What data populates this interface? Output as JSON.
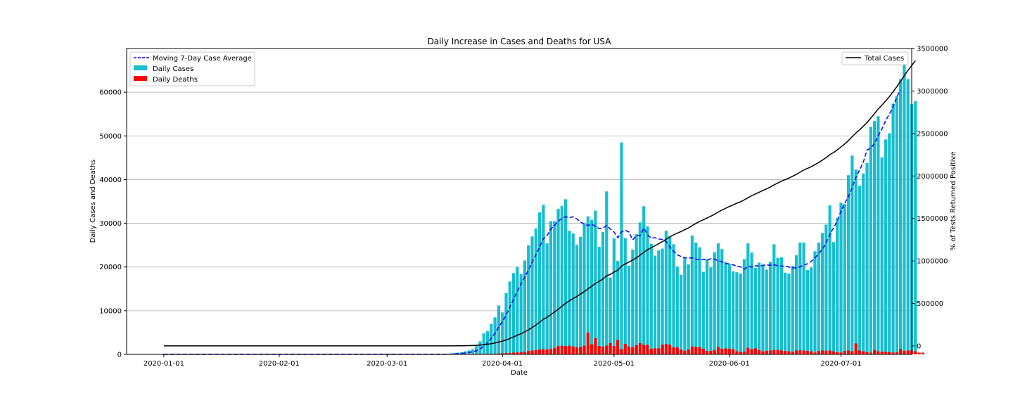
{
  "chart_data": {
    "type": "bar",
    "title": "Daily Increase in Cases and Deaths for USA",
    "xlabel": "Date",
    "ylabel": "Daily Cases and Deaths",
    "y2label": "% of Tests Returned Positive",
    "x_start": "2020-01-01",
    "x_end": "2020-07-10",
    "x_range": [
      "2019-12-22",
      "2020-07-20"
    ],
    "ylim": [
      0,
      70000
    ],
    "y2lim": [
      -100000,
      3500000
    ],
    "grid": true,
    "legend_left_position": "upper-left",
    "legend_right_position": "upper-right",
    "xticks": [
      "2020-01-01",
      "2020-02-01",
      "2020-03-01",
      "2020-04-01",
      "2020-05-01",
      "2020-06-01",
      "2020-07-01"
    ],
    "yticks": [
      "0",
      "10000",
      "20000",
      "30000",
      "40000",
      "50000",
      "60000"
    ],
    "y2ticks": [
      "0",
      "500000",
      "1000000",
      "1500000",
      "2000000",
      "2500000",
      "3000000",
      "3500000"
    ],
    "colors": {
      "daily_cases": "#17becf",
      "daily_deaths": "#ff0000",
      "moving_avg": "#0000ff",
      "total_cases": "#000000"
    },
    "legend_left": [
      "Moving 7-Day Case Average",
      "Daily Cases",
      "Daily Deaths"
    ],
    "legend_right": [
      "Total Cases"
    ],
    "daily_cases": [
      0,
      0,
      0,
      0,
      0,
      0,
      0,
      0,
      0,
      0,
      0,
      0,
      0,
      0,
      0,
      0,
      0,
      0,
      0,
      0,
      0,
      0,
      0,
      0,
      0,
      0,
      0,
      0,
      0,
      0,
      0,
      0,
      0,
      0,
      0,
      0,
      0,
      0,
      0,
      0,
      0,
      0,
      0,
      0,
      0,
      0,
      0,
      0,
      0,
      0,
      0,
      0,
      0,
      0,
      0,
      0,
      0,
      0,
      0,
      0,
      0,
      0,
      0,
      0,
      0,
      0,
      0,
      0,
      0,
      0,
      0,
      0,
      0,
      0,
      0,
      0,
      0,
      200,
      300,
      400,
      500,
      700,
      900,
      1200,
      2000,
      3000,
      4800,
      5300,
      7000,
      8500,
      11200,
      9600,
      14000,
      16700,
      18600,
      20000,
      18400,
      21500,
      25000,
      27000,
      28800,
      32500,
      34200,
      25400,
      30500,
      30500,
      33300,
      34000,
      35500,
      28300,
      27700,
      25100,
      26900,
      30000,
      31600,
      30800,
      32900,
      24600,
      28000,
      37300,
      17600,
      26600,
      21400,
      48500,
      26600,
      20300,
      24000,
      27500,
      30200,
      33900,
      29300,
      25300,
      22600,
      23800,
      24200,
      28300,
      27000,
      25200,
      20100,
      18200,
      22100,
      20600,
      27200,
      25600,
      24500,
      18900,
      21800,
      19900,
      23400,
      25400,
      24100,
      21100,
      20600,
      19000,
      18800,
      18500,
      21800,
      25400,
      23300,
      19800,
      21000,
      20500,
      19400,
      21200,
      25200,
      22100,
      22200,
      18700,
      18500,
      20300,
      22700,
      25600,
      25600,
      19300,
      19900,
      23600,
      25600,
      27800,
      29700,
      34100,
      25700,
      31200,
      34700,
      34400,
      41000,
      45500,
      42300,
      38600,
      41400,
      43800,
      52100,
      53400,
      54500,
      45100,
      49200,
      50600,
      57400,
      59100,
      63000,
      66600,
      63000,
      57300,
      58000
    ],
    "daily_deaths": [
      0,
      0,
      0,
      0,
      0,
      0,
      0,
      0,
      0,
      0,
      0,
      0,
      0,
      0,
      0,
      0,
      0,
      0,
      0,
      0,
      0,
      0,
      0,
      0,
      0,
      0,
      0,
      0,
      0,
      0,
      0,
      0,
      0,
      0,
      0,
      0,
      0,
      0,
      0,
      0,
      0,
      0,
      0,
      0,
      0,
      0,
      0,
      0,
      0,
      0,
      0,
      0,
      0,
      0,
      0,
      0,
      0,
      0,
      0,
      0,
      0,
      0,
      0,
      0,
      0,
      0,
      0,
      0,
      0,
      0,
      0,
      0,
      0,
      0,
      0,
      0,
      0,
      0,
      0,
      0,
      10,
      20,
      25,
      30,
      40,
      50,
      60,
      80,
      110,
      150,
      200,
      250,
      300,
      350,
      400,
      450,
      500,
      600,
      800,
      900,
      1000,
      1100,
      1200,
      1100,
      1300,
      1400,
      1900,
      2000,
      1900,
      2000,
      1800,
      1600,
      1700,
      2000,
      5000,
      2300,
      3700,
      1900,
      1800,
      2000,
      2600,
      1900,
      3300,
      1200,
      2400,
      1800,
      1600,
      2100,
      2600,
      2200,
      2200,
      1300,
      1400,
      1400,
      2200,
      2400,
      2200,
      1600,
      1600,
      1100,
      800,
      1100,
      1800,
      1700,
      1700,
      1300,
      800,
      800,
      1000,
      1700,
      1300,
      1400,
      1300,
      1200,
      700,
      600,
      600,
      1500,
      1200,
      1400,
      1000,
      700,
      800,
      900,
      1000,
      1000,
      900,
      800,
      700,
      600,
      900,
      900,
      900,
      800,
      700,
      400,
      800,
      900,
      800,
      900,
      700,
      500,
      400,
      800,
      900,
      700,
      2500,
      900,
      700,
      500,
      400,
      1000,
      700,
      600,
      600,
      500,
      400,
      500,
      1200,
      800,
      900,
      900,
      700,
      400,
      400
    ],
    "moving_avg": [
      0,
      0,
      0,
      0,
      0,
      0,
      0,
      0,
      0,
      0,
      0,
      0,
      0,
      0,
      0,
      0,
      0,
      0,
      0,
      0,
      0,
      0,
      0,
      0,
      0,
      0,
      0,
      0,
      0,
      0,
      0,
      0,
      0,
      0,
      0,
      0,
      0,
      0,
      0,
      0,
      0,
      0,
      0,
      0,
      0,
      0,
      0,
      0,
      0,
      0,
      0,
      0,
      0,
      0,
      0,
      0,
      0,
      0,
      0,
      0,
      0,
      0,
      0,
      0,
      0,
      0,
      0,
      0,
      0,
      0,
      0,
      0,
      0,
      0,
      0,
      0,
      20,
      40,
      100,
      160,
      230,
      330,
      450,
      600,
      820,
      1220,
      1900,
      2700,
      3700,
      4800,
      6300,
      7500,
      9000,
      10800,
      12600,
      14500,
      16100,
      17700,
      19300,
      21100,
      22800,
      24600,
      26500,
      27200,
      28700,
      29500,
      30500,
      31100,
      31500,
      31300,
      31500,
      31000,
      30300,
      29800,
      29500,
      29800,
      29300,
      28800,
      28900,
      29500,
      28700,
      28000,
      26700,
      28000,
      28400,
      28000,
      26200,
      27200,
      27200,
      28900,
      27400,
      26600,
      26700,
      26400,
      26300,
      25800,
      24600,
      23600,
      22800,
      22400,
      22100,
      22000,
      22100,
      21800,
      21600,
      21800,
      21500,
      21900,
      21800,
      21400,
      21200,
      20800,
      20700,
      20500,
      20200,
      20000,
      19500,
      20100,
      20000,
      20300,
      20200,
      20400,
      20500,
      20400,
      20500,
      20300,
      20200,
      20200,
      20000,
      19800,
      19800,
      20000,
      20500,
      20700,
      21300,
      22100,
      23000,
      24100,
      25500,
      27400,
      29000,
      30500,
      32800,
      34600,
      36100,
      38200,
      40500,
      42200,
      44000,
      46800,
      47200,
      48300,
      50000,
      51600,
      53500,
      55000,
      56600,
      58900,
      60500
    ],
    "total_cases": [
      0,
      0,
      0,
      0,
      0,
      0,
      0,
      0,
      0,
      0,
      0,
      0,
      0,
      0,
      0,
      0,
      0,
      0,
      0,
      0,
      0,
      0,
      0,
      0,
      0,
      0,
      0,
      0,
      0,
      0,
      0,
      0,
      0,
      0,
      0,
      0,
      0,
      0,
      0,
      0,
      0,
      0,
      0,
      0,
      0,
      0,
      0,
      0,
      0,
      0,
      0,
      0,
      0,
      0,
      0,
      0,
      0,
      0,
      0,
      0,
      0,
      0,
      0,
      0,
      0,
      0,
      0,
      0,
      0,
      0,
      0,
      0,
      0,
      0,
      0,
      0,
      0,
      200,
      500,
      900,
      1400,
      2100,
      3000,
      4200,
      6200,
      9200,
      14000,
      19300,
      26300,
      34800,
      46000,
      55600,
      69600,
      86300,
      104900,
      124900,
      143300,
      164800,
      189800,
      216800,
      245600,
      278100,
      312300,
      337700,
      368200,
      398700,
      432000,
      466000,
      501500,
      529800,
      557500,
      582600,
      609500,
      639500,
      671100,
      701900,
      734800,
      759400,
      787400,
      824700,
      842300,
      868900,
      890300,
      938800,
      965400,
      985700,
      1009700,
      1037200,
      1067400,
      1101300,
      1130600,
      1155900,
      1178500,
      1202300,
      1226500,
      1254800,
      1281800,
      1307000,
      1327100,
      1345300,
      1367400,
      1388000,
      1415200,
      1440800,
      1465300,
      1484200,
      1506000,
      1525900,
      1549300,
      1574700,
      1598800,
      1619900,
      1640500,
      1659500,
      1678300,
      1696800,
      1718600,
      1744000,
      1767300,
      1787100,
      1808100,
      1828600,
      1848000,
      1869200,
      1894400,
      1916500,
      1938700,
      1957400,
      1975900,
      1996200,
      2018900,
      2044500,
      2070100,
      2089400,
      2109300,
      2132900,
      2158500,
      2186300,
      2216000,
      2250100,
      2275800,
      2307000,
      2341700,
      2376100,
      2417100,
      2462600,
      2504900,
      2543500,
      2584900,
      2628700,
      2680800,
      2734200,
      2788700,
      2833800,
      2883000,
      2933600,
      2991000,
      3050100,
      3113100,
      3179700,
      3242700,
      3300000,
      3358000
    ]
  }
}
